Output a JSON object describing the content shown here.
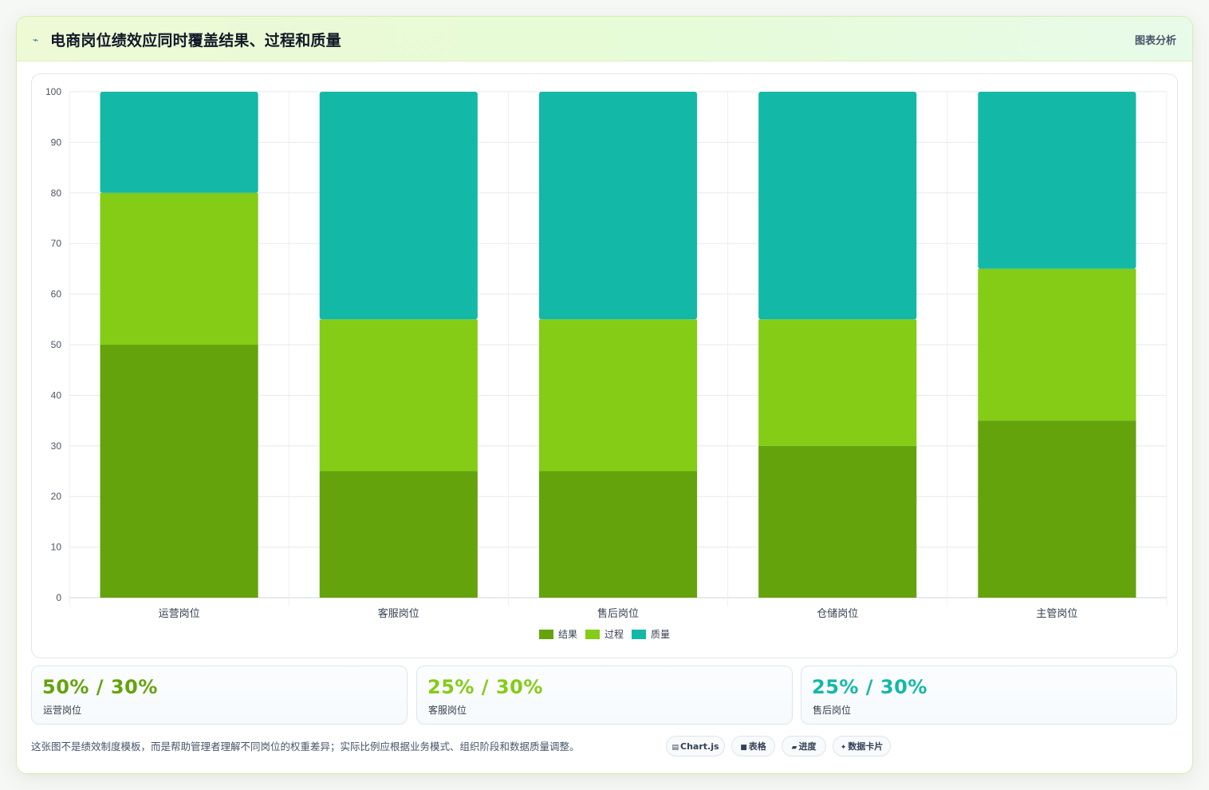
{
  "header": {
    "icon": "trend-icon",
    "title": "电商岗位绩效应同时覆盖结果、过程和质量",
    "action_label": "图表分析"
  },
  "chart_data": {
    "type": "bar",
    "stacked": true,
    "categories": [
      "运营岗位",
      "客服岗位",
      "售后岗位",
      "仓储岗位",
      "主管岗位"
    ],
    "series": [
      {
        "name": "结果",
        "color": "#65a30d",
        "values": [
          50,
          25,
          25,
          30,
          35
        ]
      },
      {
        "name": "过程",
        "color": "#84cc16",
        "values": [
          30,
          30,
          30,
          25,
          30
        ]
      },
      {
        "name": "质量",
        "color": "#14b8a6",
        "values": [
          20,
          45,
          45,
          45,
          35
        ]
      }
    ],
    "ylim": [
      0,
      100
    ],
    "yticks": [
      0,
      10,
      20,
      30,
      40,
      50,
      60,
      70,
      80,
      90,
      100
    ],
    "grid": true,
    "legend": "bottom"
  },
  "stats": [
    {
      "value": "50% / 30%",
      "label": "运营岗位",
      "color": "#65a30d"
    },
    {
      "value": "25% / 30%",
      "label": "客服岗位",
      "color": "#84cc16"
    },
    {
      "value": "25% / 30%",
      "label": "售后岗位",
      "color": "#14b8a6"
    }
  ],
  "footnote": "这张图不是绩效制度模板，而是帮助管理者理解不同岗位的权重差异；实际比例应根据业务模式、组织阶段和数据质量调整。",
  "chips": [
    {
      "icon": "chart-icon",
      "glyph": "▤",
      "label": "Chart.js"
    },
    {
      "icon": "table-icon",
      "glyph": "■",
      "label": "表格"
    },
    {
      "icon": "progress-icon",
      "glyph": "▰",
      "label": "进度"
    },
    {
      "icon": "sparkle-icon",
      "glyph": "✦",
      "label": "数据卡片"
    }
  ]
}
